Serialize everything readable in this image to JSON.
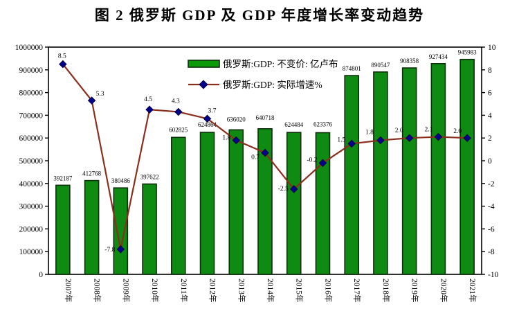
{
  "page": {
    "title": "图 2 俄罗斯 GDP 及 GDP 年度增长率变动趋势"
  },
  "chart_data": {
    "type": "bar",
    "combo": "bar+line",
    "title": "图 2 俄罗斯 GDP 及 GDP 年度增长率变动趋势",
    "categories": [
      "2007年",
      "2008年",
      "2009年",
      "2010年",
      "2011年",
      "2012年",
      "2013年",
      "2014年",
      "2015年",
      "2016年",
      "2017年",
      "2018年",
      "2019年",
      "2020年",
      "2021年"
    ],
    "series": [
      {
        "name": "俄罗斯:GDP: 不变价: 亿卢布",
        "type": "bar",
        "axis": "left",
        "color": "#0f8a12",
        "border_color": "#0c2e0a",
        "values": [
          392187,
          412768,
          380486,
          397622,
          602825,
          624864,
          636020,
          640718,
          624484,
          623376,
          874801,
          890547,
          908358,
          927434,
          945983
        ]
      },
      {
        "name": "俄罗斯:GDP: 实际增速%",
        "type": "line",
        "axis": "right",
        "color": "#8b2e1e",
        "marker": "diamond",
        "marker_color": "#00008b",
        "values": [
          8.5,
          5.3,
          -7.8,
          4.5,
          4.3,
          3.7,
          1.8,
          0.7,
          -2.5,
          -0.2,
          1.5,
          1.8,
          2.0,
          2.1,
          2.0
        ],
        "labels": [
          "8.5",
          "5.3",
          "-7.8",
          "4.5",
          "4.3",
          "3.7",
          "1.8",
          "0.7",
          "-2.5",
          "-0.2",
          "1.5",
          "1.8",
          "2.0",
          "2.1",
          "2.0"
        ]
      }
    ],
    "left_axis": {
      "min": 0,
      "max": 1000000,
      "ticks": [
        0,
        100000,
        200000,
        300000,
        400000,
        500000,
        600000,
        700000,
        800000,
        900000,
        1000000
      ]
    },
    "right_axis": {
      "min": -10,
      "max": 10,
      "ticks": [
        -10,
        -8,
        -6,
        -4,
        -2,
        0,
        2,
        4,
        6,
        8,
        10
      ]
    },
    "grid": "off",
    "legend_position": "inside-top-center",
    "plot_border_color": "#000000",
    "background_color": "#ffffff"
  }
}
